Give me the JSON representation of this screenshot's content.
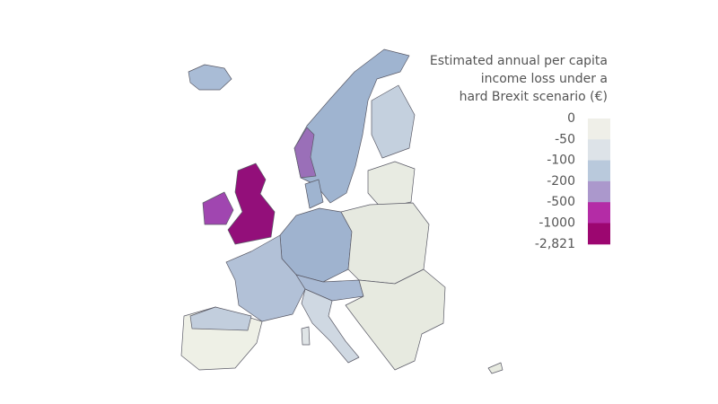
{
  "legend": {
    "title": [
      "Estimated annual per capita",
      "income loss under a",
      "hard Brexit scenario (€)"
    ],
    "ticks": [
      "0",
      "-50",
      "-100",
      "-200",
      "-500",
      "-1000",
      "-2,821"
    ],
    "colors": [
      "#efefe8",
      "#dde3e8",
      "#b9c9dc",
      "#ab98cc",
      "#b42ca6",
      "#9c0670"
    ]
  }
}
